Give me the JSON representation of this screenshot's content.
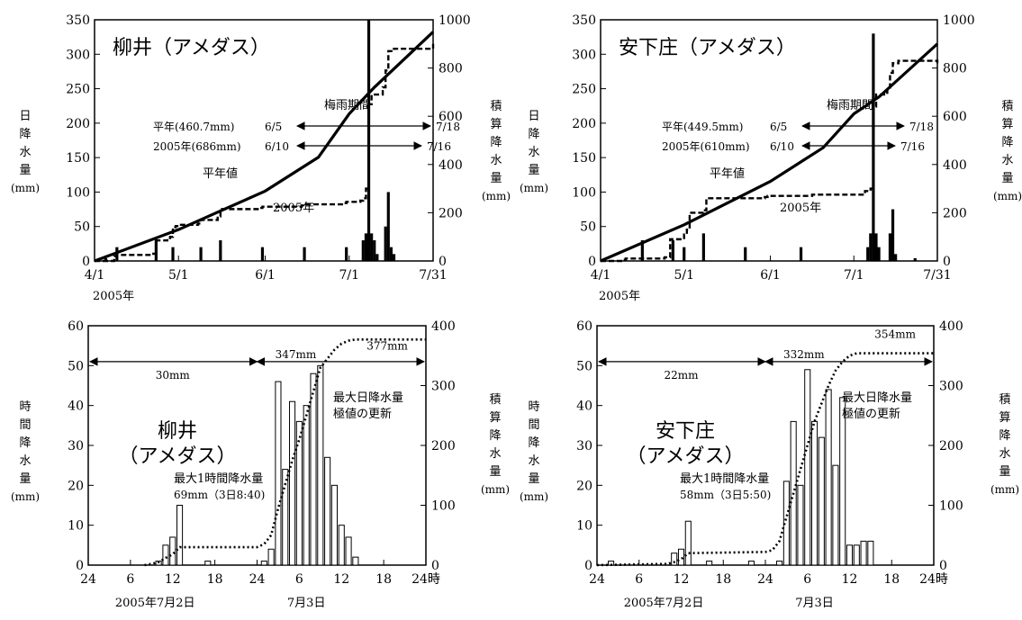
{
  "chart_data": [
    {
      "type": "bar+line",
      "title": "柳井（アメダス）",
      "ylabel_left": [
        "日",
        "降",
        "水",
        "量",
        "(mm)"
      ],
      "ylabel_right": [
        "積",
        "算",
        "降",
        "水",
        "量",
        "(mm)"
      ],
      "xticks": [
        "4/1",
        "5/1",
        "6/1",
        "7/1",
        "7/31"
      ],
      "xlabel_year": "2005年",
      "ylim_left": [
        0,
        350
      ],
      "ylim_right": [
        0,
        1000
      ],
      "yticks_left": [
        "0",
        "50",
        "100",
        "150",
        "200",
        "250",
        "300",
        "350"
      ],
      "yticks_right": [
        "0",
        "200",
        "400",
        "600",
        "800",
        "1000"
      ],
      "legend_label_normal": "平年値",
      "legend_label_2005": "2005年",
      "tsuyu_header": "梅雨期間",
      "tsuyu_rows": [
        {
          "label": "平年(460.7mm)",
          "start": "6/5",
          "end": "7/18"
        },
        {
          "label": "2005年(686mm)",
          "start": "6/10",
          "end": "7/16"
        }
      ],
      "daily_bars": [
        [
          4,
          4
        ],
        [
          8,
          20
        ],
        [
          22,
          30
        ],
        [
          28,
          20
        ],
        [
          38,
          20
        ],
        [
          45,
          30
        ],
        [
          60,
          20
        ],
        [
          75,
          20
        ],
        [
          90,
          20
        ],
        [
          96,
          30
        ],
        [
          97,
          40
        ],
        [
          98,
          350
        ],
        [
          99,
          40
        ],
        [
          100,
          30
        ],
        [
          101,
          10
        ],
        [
          104,
          50
        ],
        [
          105,
          100
        ],
        [
          106,
          20
        ],
        [
          107,
          10
        ]
      ],
      "normal_cum": [
        [
          0,
          0
        ],
        [
          30,
          130
        ],
        [
          61,
          290
        ],
        [
          80,
          430
        ],
        [
          91,
          610
        ],
        [
          100,
          720
        ],
        [
          121,
          950
        ]
      ],
      "cum_2005": [
        [
          0,
          0
        ],
        [
          7,
          20
        ],
        [
          8,
          25
        ],
        [
          21,
          30
        ],
        [
          22,
          85
        ],
        [
          26,
          95
        ],
        [
          27,
          100
        ],
        [
          28,
          140
        ],
        [
          29,
          145
        ],
        [
          30,
          150
        ],
        [
          37,
          155
        ],
        [
          38,
          170
        ],
        [
          44,
          185
        ],
        [
          45,
          215
        ],
        [
          59,
          220
        ],
        [
          60,
          225
        ],
        [
          74,
          230
        ],
        [
          75,
          235
        ],
        [
          89,
          240
        ],
        [
          90,
          245
        ],
        [
          95,
          250
        ],
        [
          96,
          260
        ],
        [
          97,
          300
        ],
        [
          98,
          650
        ],
        [
          99,
          690
        ],
        [
          103,
          720
        ],
        [
          104,
          790
        ],
        [
          105,
          870
        ],
        [
          107,
          880
        ],
        [
          121,
          900
        ]
      ]
    },
    {
      "type": "bar+line",
      "title": "安下庄（アメダス）",
      "ylabel_left": [
        "日",
        "降",
        "水",
        "量",
        "(mm)"
      ],
      "ylabel_right": [
        "積",
        "算",
        "降",
        "水",
        "量",
        "(mm)"
      ],
      "xticks": [
        "4/1",
        "5/1",
        "6/1",
        "7/1",
        "7/31"
      ],
      "xlabel_year": "2005年",
      "ylim_left": [
        0,
        350
      ],
      "ylim_right": [
        0,
        1000
      ],
      "yticks_left": [
        "0",
        "50",
        "100",
        "150",
        "200",
        "250",
        "300",
        "350"
      ],
      "yticks_right": [
        "0",
        "200",
        "400",
        "600",
        "800",
        "1000"
      ],
      "legend_label_normal": "平年値",
      "legend_label_2005": "2005年",
      "tsuyu_header": "梅雨期間",
      "tsuyu_rows": [
        {
          "label": "平年(449.5mm)",
          "start": "6/5",
          "end": "7/18"
        },
        {
          "label": "2005年(610mm)",
          "start": "6/10",
          "end": "7/16"
        }
      ],
      "daily_bars": [
        [
          15,
          30
        ],
        [
          26,
          30
        ],
        [
          30,
          20
        ],
        [
          37,
          40
        ],
        [
          52,
          20
        ],
        [
          72,
          20
        ],
        [
          96,
          20
        ],
        [
          97,
          40
        ],
        [
          98,
          330
        ],
        [
          99,
          40
        ],
        [
          100,
          20
        ],
        [
          104,
          40
        ],
        [
          105,
          75
        ],
        [
          106,
          10
        ],
        [
          113,
          4
        ]
      ],
      "normal_cum": [
        [
          0,
          0
        ],
        [
          30,
          150
        ],
        [
          61,
          330
        ],
        [
          80,
          470
        ],
        [
          91,
          610
        ],
        [
          100,
          680
        ],
        [
          121,
          900
        ]
      ],
      "cum_2005": [
        [
          0,
          0
        ],
        [
          8,
          5
        ],
        [
          9,
          10
        ],
        [
          23,
          15
        ],
        [
          25,
          90
        ],
        [
          30,
          110
        ],
        [
          31,
          130
        ],
        [
          32,
          200
        ],
        [
          37,
          210
        ],
        [
          38,
          260
        ],
        [
          59,
          265
        ],
        [
          60,
          270
        ],
        [
          76,
          275
        ],
        [
          95,
          290
        ],
        [
          97,
          300
        ],
        [
          98,
          640
        ],
        [
          99,
          690
        ],
        [
          103,
          710
        ],
        [
          104,
          780
        ],
        [
          105,
          820
        ],
        [
          107,
          830
        ],
        [
          121,
          820
        ]
      ]
    },
    {
      "type": "bar+line",
      "title": [
        "柳井",
        "（アメダス）"
      ],
      "ylabel_left": [
        "時",
        "間",
        "降",
        "水",
        "量",
        "(mm)"
      ],
      "ylabel_right": [
        "積",
        "算",
        "降",
        "水",
        "量",
        "(mm)"
      ],
      "xticks": [
        "24",
        "6",
        "12",
        "18",
        "24",
        "6",
        "12",
        "18",
        "24時"
      ],
      "xlabel_dates": [
        "2005年7月2日",
        "7月3日"
      ],
      "ylim_left": [
        0,
        60
      ],
      "ylim_right": [
        0,
        400
      ],
      "yticks_left": [
        "0",
        "10",
        "20",
        "30",
        "40",
        "50",
        "60"
      ],
      "yticks_right": [
        "0",
        "100",
        "200",
        "300",
        "400"
      ],
      "annotations": {
        "seg1": "30mm",
        "seg2": "347mm",
        "total": "377mm",
        "record": [
          "最大日降水量",
          "極値の更新"
        ],
        "max_hourly": [
          "最大1時間降水量",
          "69mm（3日8:40)"
        ]
      },
      "hourly_bars": [
        [
          10,
          1
        ],
        [
          11,
          5
        ],
        [
          12,
          7
        ],
        [
          13,
          15
        ],
        [
          17,
          1
        ],
        [
          25,
          1
        ],
        [
          26,
          4
        ],
        [
          27,
          46
        ],
        [
          28,
          24
        ],
        [
          29,
          41
        ],
        [
          30,
          36
        ],
        [
          31,
          40
        ],
        [
          32,
          48
        ],
        [
          33,
          50
        ],
        [
          34,
          27
        ],
        [
          35,
          20
        ],
        [
          36,
          10
        ],
        [
          37,
          7
        ],
        [
          38,
          2
        ]
      ],
      "cumulative": [
        [
          8,
          0
        ],
        [
          9,
          2
        ],
        [
          10,
          5
        ],
        [
          11,
          12
        ],
        [
          12,
          18
        ],
        [
          13,
          30
        ],
        [
          24,
          30
        ],
        [
          25,
          35
        ],
        [
          26,
          50
        ],
        [
          27,
          95
        ],
        [
          28,
          135
        ],
        [
          29,
          175
        ],
        [
          30,
          210
        ],
        [
          31,
          250
        ],
        [
          32,
          290
        ],
        [
          33,
          330
        ],
        [
          34,
          345
        ],
        [
          35,
          360
        ],
        [
          36,
          370
        ],
        [
          37,
          375
        ],
        [
          38,
          377
        ],
        [
          48,
          377
        ]
      ]
    },
    {
      "type": "bar+line",
      "title": [
        "安下庄",
        "（アメダス）"
      ],
      "ylabel_left": [
        "時",
        "間",
        "降",
        "水",
        "量",
        "(mm)"
      ],
      "ylabel_right": [
        "積",
        "算",
        "降",
        "水",
        "量",
        "(mm)"
      ],
      "xticks": [
        "24",
        "6",
        "12",
        "18",
        "24",
        "6",
        "12",
        "18",
        "24時"
      ],
      "xlabel_dates": [
        "2005年7月2日",
        "7月3日"
      ],
      "ylim_left": [
        0,
        60
      ],
      "ylim_right": [
        0,
        400
      ],
      "yticks_left": [
        "0",
        "10",
        "20",
        "30",
        "40",
        "50",
        "60"
      ],
      "yticks_right": [
        "0",
        "100",
        "200",
        "300",
        "400"
      ],
      "annotations": {
        "seg1": "22mm",
        "seg2": "332mm",
        "total": "354mm",
        "record": [
          "最大日降水量",
          "極値の更新"
        ],
        "max_hourly": [
          "最大1時間降水量",
          "58mm（3日5:50)"
        ]
      },
      "hourly_bars": [
        [
          2,
          1
        ],
        [
          11,
          3
        ],
        [
          12,
          4
        ],
        [
          13,
          11
        ],
        [
          16,
          1
        ],
        [
          22,
          1
        ],
        [
          26,
          1
        ],
        [
          27,
          21
        ],
        [
          28,
          36
        ],
        [
          29,
          20
        ],
        [
          30,
          49
        ],
        [
          31,
          36
        ],
        [
          32,
          32
        ],
        [
          33,
          44
        ],
        [
          34,
          25
        ],
        [
          35,
          42
        ],
        [
          36,
          5
        ],
        [
          37,
          5
        ],
        [
          38,
          6
        ],
        [
          39,
          6
        ]
      ],
      "cumulative": [
        [
          0,
          0
        ],
        [
          10,
          2
        ],
        [
          11,
          5
        ],
        [
          12,
          10
        ],
        [
          13,
          20
        ],
        [
          24,
          22
        ],
        [
          25,
          25
        ],
        [
          26,
          40
        ],
        [
          27,
          80
        ],
        [
          28,
          120
        ],
        [
          29,
          160
        ],
        [
          30,
          200
        ],
        [
          31,
          240
        ],
        [
          32,
          270
        ],
        [
          33,
          300
        ],
        [
          34,
          325
        ],
        [
          35,
          340
        ],
        [
          36,
          350
        ],
        [
          37,
          354
        ],
        [
          48,
          354
        ]
      ]
    }
  ]
}
